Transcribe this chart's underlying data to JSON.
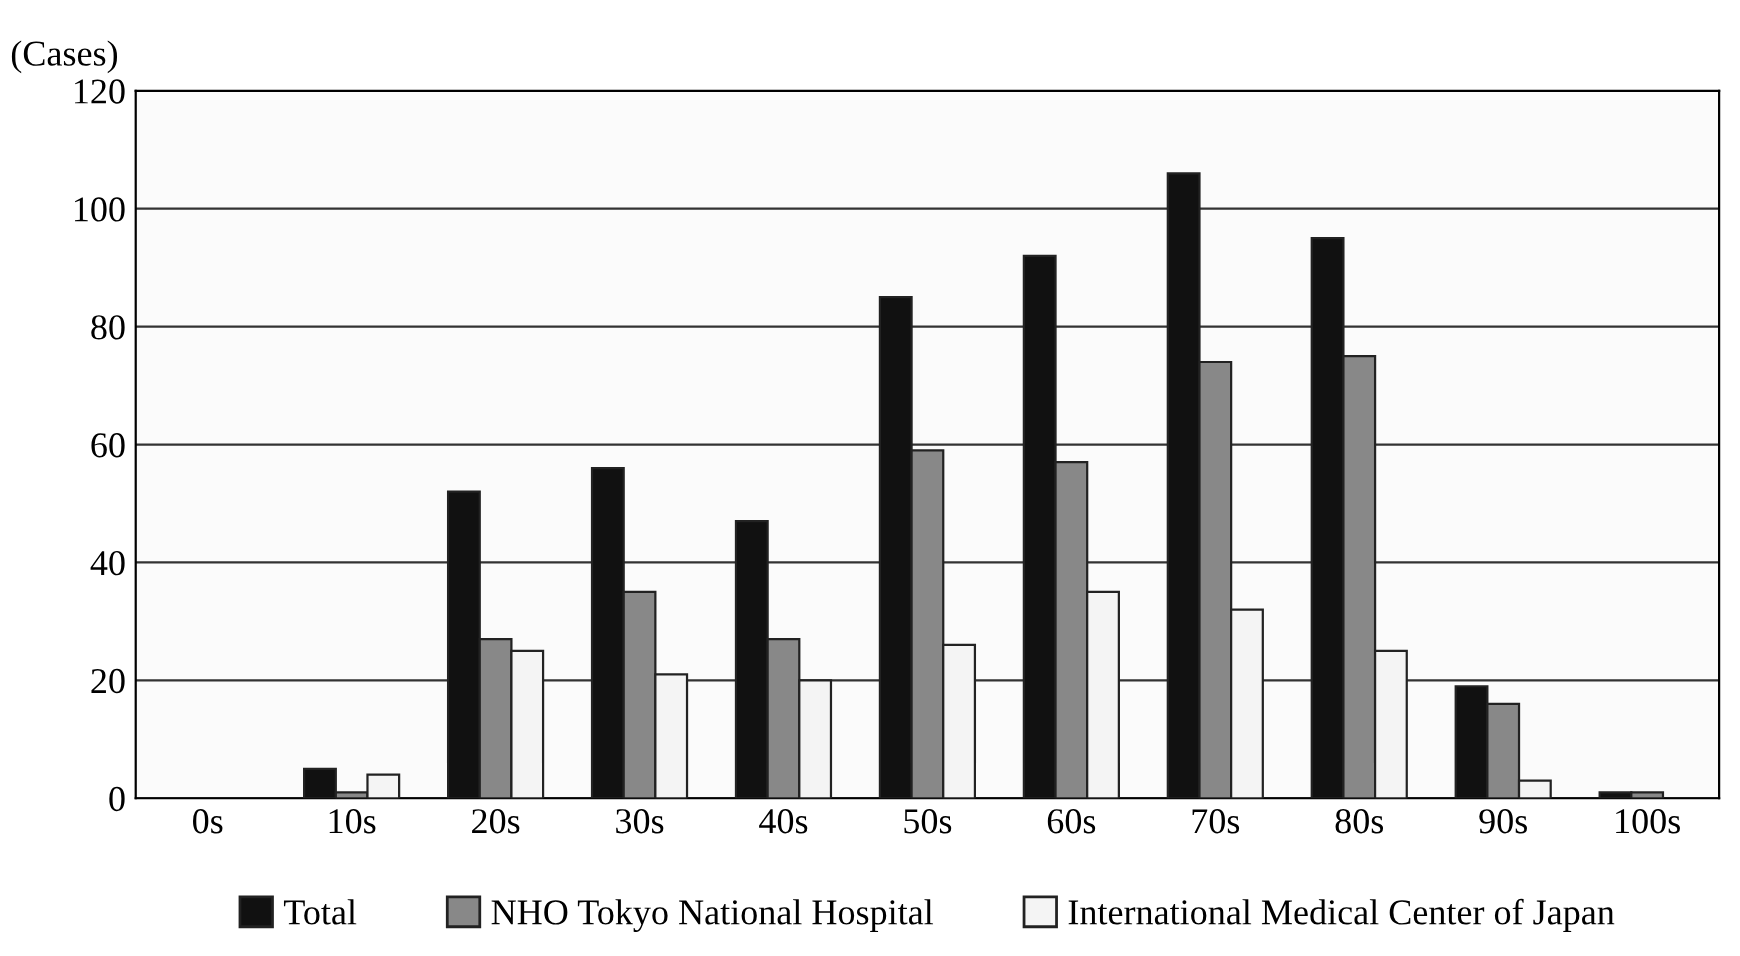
{
  "chart_data": {
    "type": "bar",
    "ylabel": "(Cases)",
    "categories": [
      "0s",
      "10s",
      "20s",
      "30s",
      "40s",
      "50s",
      "60s",
      "70s",
      "80s",
      "90s",
      "100s"
    ],
    "series": [
      {
        "name": "Total",
        "color": "#111111",
        "values": [
          0,
          5,
          52,
          56,
          47,
          85,
          92,
          106,
          95,
          19,
          1
        ]
      },
      {
        "name": "NHO Tokyo National Hospital",
        "color": "#888888",
        "values": [
          0,
          1,
          27,
          35,
          27,
          59,
          57,
          74,
          75,
          16,
          1
        ]
      },
      {
        "name": "International Medical Center of Japan",
        "color": "#f4f4f4",
        "values": [
          0,
          4,
          25,
          21,
          20,
          26,
          35,
          32,
          25,
          3,
          0
        ]
      }
    ],
    "ylim": [
      0,
      120
    ],
    "yticks": [
      0,
      20,
      40,
      60,
      80,
      100,
      120
    ],
    "grid": "y",
    "legend": "bottom"
  }
}
